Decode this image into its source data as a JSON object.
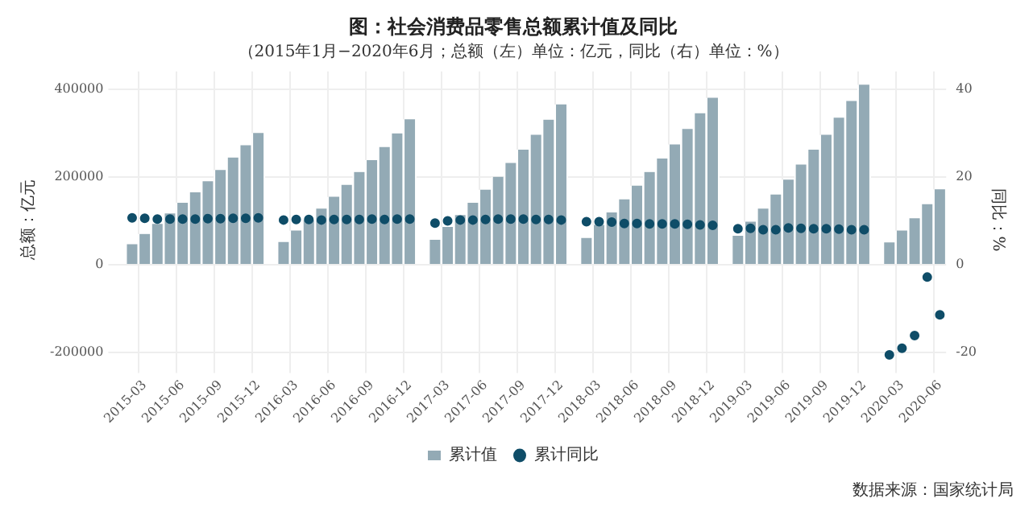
{
  "chart_data": {
    "type": "bar",
    "title": "图：社会消费品零售总额累计值及同比",
    "subtitle": "（2015年1月−2020年6月；总额（左）单位：亿元，同比（右）单位：%）",
    "ylabel": "总额：亿元",
    "y2label": "同比：%",
    "categories": [
      null,
      null,
      "2015-03",
      null,
      null,
      "2015-06",
      null,
      null,
      "2015-09",
      null,
      null,
      "2015-12",
      null,
      null,
      "2016-03",
      null,
      null,
      "2016-06",
      null,
      null,
      "2016-09",
      null,
      null,
      "2016-12",
      null,
      null,
      "2017-03",
      null,
      null,
      "2017-06",
      null,
      null,
      "2017-09",
      null,
      null,
      "2017-12",
      null,
      null,
      "2018-03",
      null,
      null,
      "2018-06",
      null,
      null,
      "2018-09",
      null,
      null,
      "2018-12",
      null,
      null,
      "2019-03",
      null,
      null,
      "2019-06",
      null,
      null,
      "2019-09",
      null,
      null,
      "2019-12",
      null,
      null,
      "2020-03",
      null,
      null,
      "2020-06"
    ],
    "series": [
      {
        "name": "累计值",
        "color": "#93aab5",
        "values": [
          null,
          47000,
          70000,
          93000,
          117000,
          141000,
          165000,
          190000,
          216000,
          244000,
          272000,
          300000,
          null,
          52000,
          78000,
          102000,
          128000,
          155000,
          182000,
          211000,
          238000,
          268000,
          299000,
          331000,
          null,
          57000,
          86000,
          113000,
          141000,
          171000,
          200000,
          232000,
          262000,
          296000,
          330000,
          365000,
          null,
          61000,
          91000,
          119000,
          149000,
          180000,
          211000,
          242000,
          274000,
          309000,
          345000,
          380000,
          null,
          66000,
          98000,
          128000,
          160000,
          194000,
          228000,
          262000,
          296000,
          335000,
          373000,
          410000,
          null,
          51000,
          78000,
          106000,
          138000,
          172000
        ]
      },
      {
        "name": "累计同比",
        "type": "scatter",
        "axis": "y2",
        "color": "#0f4d68",
        "values": [
          null,
          10.7,
          10.6,
          10.4,
          10.4,
          10.4,
          10.4,
          10.5,
          10.5,
          10.6,
          10.6,
          10.7,
          null,
          10.2,
          10.3,
          10.3,
          10.2,
          10.3,
          10.3,
          10.3,
          10.4,
          10.3,
          10.4,
          10.4,
          null,
          9.5,
          10.0,
          10.2,
          10.2,
          10.3,
          10.4,
          10.4,
          10.4,
          10.3,
          10.3,
          10.2,
          null,
          9.8,
          9.8,
          9.7,
          9.4,
          9.4,
          9.3,
          9.3,
          9.3,
          9.2,
          9.1,
          9.0,
          null,
          8.2,
          8.3,
          8.0,
          8.0,
          8.4,
          8.3,
          8.2,
          8.2,
          8.1,
          8.0,
          8.0,
          null,
          -20.5,
          -19.0,
          -16.1,
          -2.8,
          -11.4
        ]
      }
    ],
    "ylim": [
      -235000,
      440000
    ],
    "yticks": [
      -200000,
      0,
      200000,
      400000
    ],
    "y2lim": [
      -23.5,
      44
    ],
    "y2ticks": [
      -20,
      0,
      20,
      40
    ],
    "grid": true,
    "legend": "bottom",
    "marker": "circle",
    "annotations": [
      "数据来源：国家统计局"
    ]
  }
}
